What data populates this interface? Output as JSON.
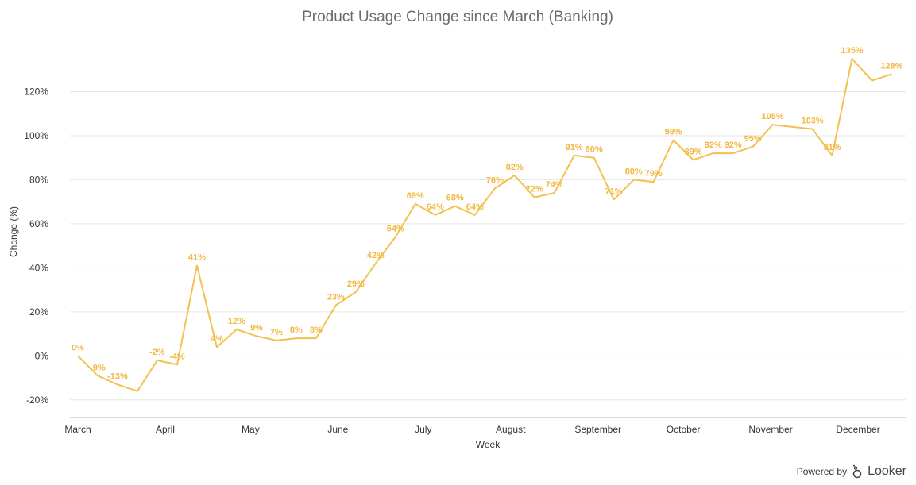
{
  "chart_data": {
    "type": "line",
    "title": "Product Usage Change since March (Banking)",
    "xlabel": "Week",
    "ylabel": "Change (%)",
    "ylim": [
      -28,
      140
    ],
    "yticks": [
      -20,
      0,
      20,
      40,
      60,
      80,
      100,
      120
    ],
    "ytick_labels": [
      "-20%",
      "0%",
      "20%",
      "40%",
      "60%",
      "80%",
      "100%",
      "120%"
    ],
    "xlim": [
      0,
      41.3
    ],
    "month_ticks": [
      {
        "label": "March",
        "pos": 0
      },
      {
        "label": "April",
        "pos": 4.4
      },
      {
        "label": "May",
        "pos": 8.7
      },
      {
        "label": "June",
        "pos": 13.1
      },
      {
        "label": "July",
        "pos": 17.4
      },
      {
        "label": "August",
        "pos": 21.8
      },
      {
        "label": "September",
        "pos": 26.2
      },
      {
        "label": "October",
        "pos": 30.5
      },
      {
        "label": "November",
        "pos": 34.9
      },
      {
        "label": "December",
        "pos": 39.3
      }
    ],
    "grid": true,
    "color": "#f2c14e",
    "label_color": "#f2b843",
    "series": [
      {
        "values": [
          0,
          -9,
          -13,
          -16,
          -2,
          -4,
          41,
          4,
          12,
          9,
          7,
          8,
          8,
          23,
          29,
          42,
          54,
          69,
          64,
          68,
          64,
          76,
          82,
          72,
          74,
          91,
          90,
          71,
          80,
          79,
          98,
          89,
          92,
          92,
          95,
          105,
          104,
          103,
          91,
          135,
          125,
          128
        ],
        "labels": [
          "0%",
          "-9%",
          "-13%",
          "",
          "-2%",
          "-4%",
          "41%",
          "4%",
          "12%",
          "9%",
          "7%",
          "8%",
          "8%",
          "23%",
          "29%",
          "42%",
          "54%",
          "69%",
          "64%",
          "68%",
          "64%",
          "76%",
          "82%",
          "72%",
          "74%",
          "91%",
          "90%",
          "71%",
          "80%",
          "79%",
          "98%",
          "89%",
          "92%",
          "92%",
          "95%",
          "105%",
          "",
          "103%",
          "91%",
          "135%",
          "",
          "128%"
        ]
      }
    ]
  },
  "footer": {
    "powered_by": "Powered by",
    "brand": "Looker"
  }
}
